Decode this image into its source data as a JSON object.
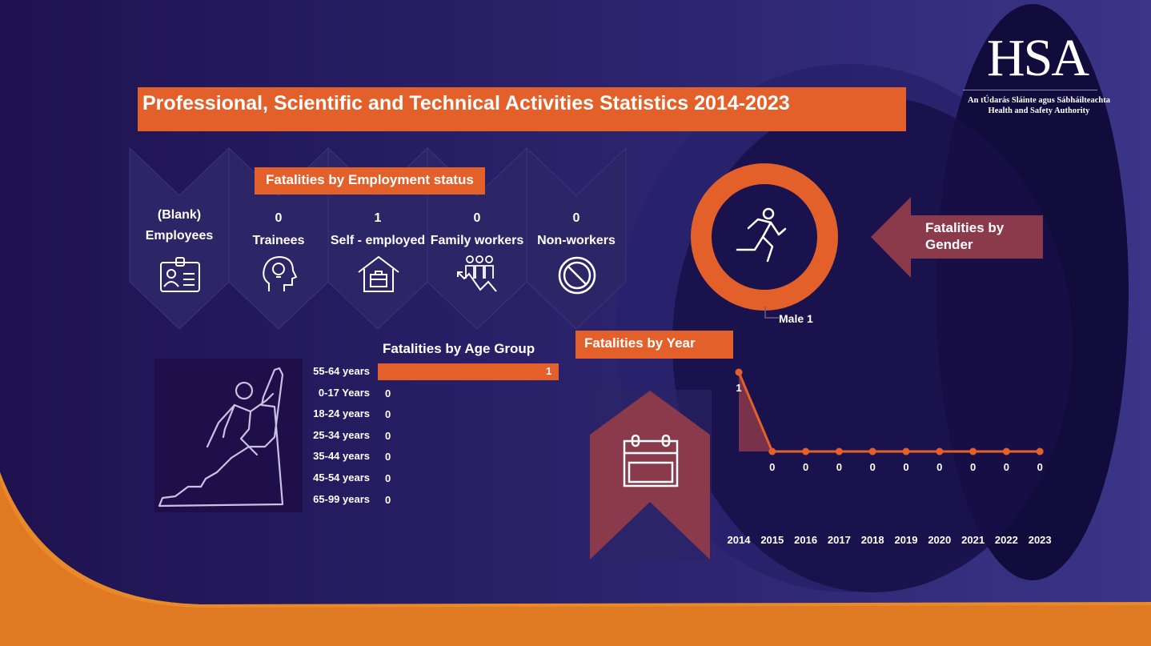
{
  "header": {
    "title": "Professional, Scientific and Technical Activities Statistics 2014-2023"
  },
  "logo": {
    "brand": "HSA",
    "subtitle_line1": "An tÚdarás Sláinte agus Sábháilteachta",
    "subtitle_line2": "Health and Safety Authority"
  },
  "colors": {
    "accent_orange": "#e4602b",
    "background_navy": "#1b1148",
    "panel_purple": "#2c2566",
    "gender_arrow": "#8a3a4a"
  },
  "employment": {
    "section_title": "Fatalities by Employment status",
    "items": [
      {
        "count": "(Blank)",
        "label": "Employees",
        "icon": "id-badge-icon"
      },
      {
        "count": "0",
        "label": "Trainees",
        "icon": "head-lightbulb-icon"
      },
      {
        "count": "1",
        "label": "Self - employed",
        "icon": "house-briefcase-icon"
      },
      {
        "count": "0",
        "label": "Family workers",
        "icon": "family-chart-icon"
      },
      {
        "count": "0",
        "label": "Non-workers",
        "icon": "no-entry-icon"
      }
    ]
  },
  "gender": {
    "section_title": "Fatalities by Gender",
    "title_line1": "Fatalities by",
    "title_line2": "Gender",
    "icon": "running-person-icon",
    "legend": "Male 1"
  },
  "age": {
    "section_title": "Fatalities by Age Group",
    "icon": "climber-icon",
    "rows": [
      {
        "label": "55-64 years",
        "value": 1
      },
      {
        "label": "0-17 Years",
        "value": 0
      },
      {
        "label": "18-24 years",
        "value": 0
      },
      {
        "label": "25-34 years",
        "value": 0
      },
      {
        "label": "35-44 years",
        "value": 0
      },
      {
        "label": "45-54 years",
        "value": 0
      },
      {
        "label": "65-99 years",
        "value": 0
      }
    ]
  },
  "year": {
    "section_title": "Fatalities by Year",
    "icon": "calendar-icon"
  },
  "chart_data": [
    {
      "type": "bar",
      "title": "Fatalities by Age Group",
      "categories": [
        "55-64 years",
        "0-17 Years",
        "18-24 years",
        "25-34 years",
        "35-44 years",
        "45-54 years",
        "65-99 years"
      ],
      "values": [
        1,
        0,
        0,
        0,
        0,
        0,
        0
      ]
    },
    {
      "type": "area",
      "title": "Fatalities by Year",
      "x": [
        "2014",
        "2015",
        "2016",
        "2017",
        "2018",
        "2019",
        "2020",
        "2021",
        "2022",
        "2023"
      ],
      "values": [
        1,
        0,
        0,
        0,
        0,
        0,
        0,
        0,
        0,
        0
      ]
    },
    {
      "type": "pie",
      "title": "Fatalities by Gender",
      "categories": [
        "Male"
      ],
      "values": [
        1
      ]
    }
  ]
}
